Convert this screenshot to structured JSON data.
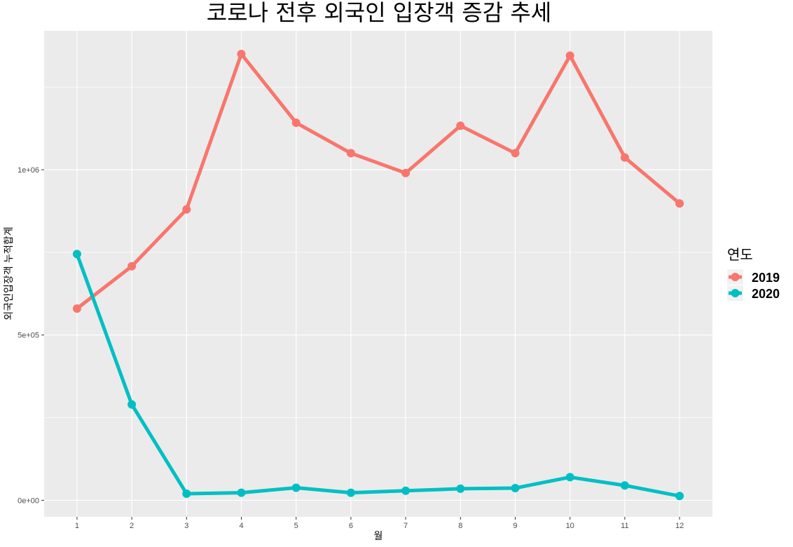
{
  "chart_data": {
    "type": "line",
    "title": "코로나 전후 외국인 입장객 증감 추세",
    "xlabel": "월",
    "ylabel": "외국인입장객 누적합계",
    "x": [
      1,
      2,
      3,
      4,
      5,
      6,
      7,
      8,
      9,
      10,
      11,
      12
    ],
    "x_tick_labels": [
      "1",
      "2",
      "3",
      "4",
      "5",
      "6",
      "7",
      "8",
      "9",
      "10",
      "11",
      "12"
    ],
    "xlim": [
      0.4,
      12.6
    ],
    "ylim": [
      -50000,
      1420000
    ],
    "y_ticks": [
      0,
      500000,
      1000000
    ],
    "y_tick_labels": [
      "0e+00",
      "5e+05",
      "1e+06"
    ],
    "grid": true,
    "legend": {
      "title": "연도",
      "position": "right"
    },
    "series": [
      {
        "name": "2019",
        "color": "#F8766D",
        "values": [
          580000,
          708000,
          880000,
          1350000,
          1142000,
          1050000,
          990000,
          1133000,
          1050000,
          1345000,
          1037000,
          898000
        ]
      },
      {
        "name": "2020",
        "color": "#00BFC4",
        "values": [
          745000,
          290000,
          20000,
          23000,
          38000,
          23000,
          29000,
          35000,
          37000,
          70000,
          45000,
          13000
        ]
      }
    ]
  }
}
